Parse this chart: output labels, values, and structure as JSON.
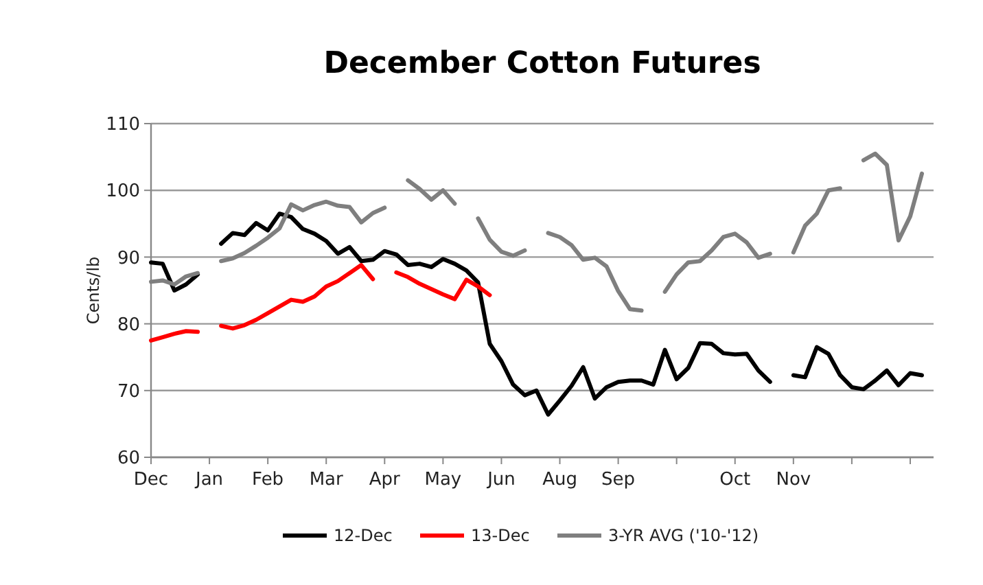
{
  "chart_data": {
    "type": "line",
    "title": "December Cotton Futures",
    "ylabel": "Cents/lb",
    "categories": [
      "Dec",
      null,
      null,
      null,
      null,
      "Jan",
      null,
      null,
      null,
      null,
      "Feb",
      null,
      null,
      null,
      null,
      "Mar",
      null,
      null,
      null,
      null,
      "Apr",
      null,
      null,
      null,
      null,
      "May",
      null,
      null,
      null,
      null,
      "Jun",
      null,
      null,
      null,
      null,
      "Aug",
      null,
      null,
      null,
      null,
      "Sep",
      null,
      null,
      null,
      null,
      null,
      null,
      null,
      null,
      null,
      "Oct",
      null,
      null,
      null,
      null,
      "Nov",
      null,
      null,
      null,
      null,
      null,
      null,
      null,
      null,
      null,
      null,
      null,
      null
    ],
    "ylim": [
      60,
      110
    ],
    "yticks": [
      60,
      70,
      80,
      90,
      100,
      110
    ],
    "grid": "y",
    "legend": "bottom",
    "marker": "none",
    "line_style": "solid",
    "series": [
      {
        "name": "12-Dec",
        "color": "#000000",
        "values": [
          89.2,
          89.0,
          85.0,
          85.9,
          87.4,
          null,
          92.0,
          93.6,
          93.3,
          95.1,
          94.0,
          96.5,
          96.0,
          94.2,
          93.5,
          92.4,
          90.5,
          91.5,
          89.4,
          89.6,
          90.9,
          90.4,
          88.8,
          89.0,
          88.5,
          89.7,
          89.0,
          88.0,
          86.2,
          77.0,
          74.4,
          70.9,
          69.3,
          70.0,
          66.4,
          68.5,
          70.7,
          73.5,
          68.8,
          70.5,
          71.3,
          71.5,
          71.5,
          70.9,
          76.1,
          71.7,
          73.4,
          77.1,
          77.0,
          75.6,
          75.4,
          75.5,
          73.0,
          71.3,
          null,
          72.3,
          72.0,
          76.5,
          75.5,
          72.3,
          70.5,
          70.2,
          71.5,
          73.0,
          70.8,
          72.6,
          72.3,
          null
        ]
      },
      {
        "name": "13-Dec",
        "color": "#ff0000",
        "values": [
          77.5,
          78.0,
          78.5,
          78.9,
          78.8,
          null,
          79.7,
          79.3,
          79.8,
          80.6,
          81.6,
          82.6,
          83.6,
          83.3,
          84.1,
          85.6,
          86.4,
          87.6,
          88.8,
          86.7,
          null,
          87.7,
          87.0,
          86.0,
          85.2,
          84.4,
          83.7,
          86.6,
          85.6,
          84.3,
          null,
          null,
          null,
          null,
          null,
          null,
          null,
          null,
          null,
          null,
          null,
          null,
          null,
          null,
          null,
          null,
          null,
          null,
          null,
          null,
          null,
          null,
          null,
          null,
          null,
          null,
          null,
          null,
          null,
          null,
          null,
          null,
          null,
          null,
          null,
          null,
          null,
          null
        ]
      },
      {
        "name": "3-YR AVG ('10-'12)",
        "color": "#7f7f7f",
        "values": [
          86.3,
          86.5,
          85.9,
          87.1,
          87.6,
          null,
          89.4,
          89.8,
          90.6,
          91.7,
          92.9,
          94.3,
          97.9,
          97.0,
          97.8,
          98.3,
          97.7,
          97.5,
          95.2,
          96.6,
          97.4,
          null,
          101.5,
          100.2,
          98.6,
          100.0,
          98.0,
          null,
          95.8,
          92.6,
          90.8,
          90.2,
          91.0,
          null,
          93.6,
          93.0,
          91.8,
          89.6,
          89.9,
          88.6,
          84.9,
          82.2,
          82.0,
          null,
          84.8,
          87.4,
          89.2,
          89.4,
          91.0,
          93.0,
          93.5,
          92.2,
          89.9,
          90.5,
          null,
          90.7,
          94.7,
          96.5,
          100.0,
          100.3,
          null,
          104.5,
          105.5,
          103.8,
          92.5,
          96.1,
          102.5,
          null
        ]
      }
    ]
  }
}
